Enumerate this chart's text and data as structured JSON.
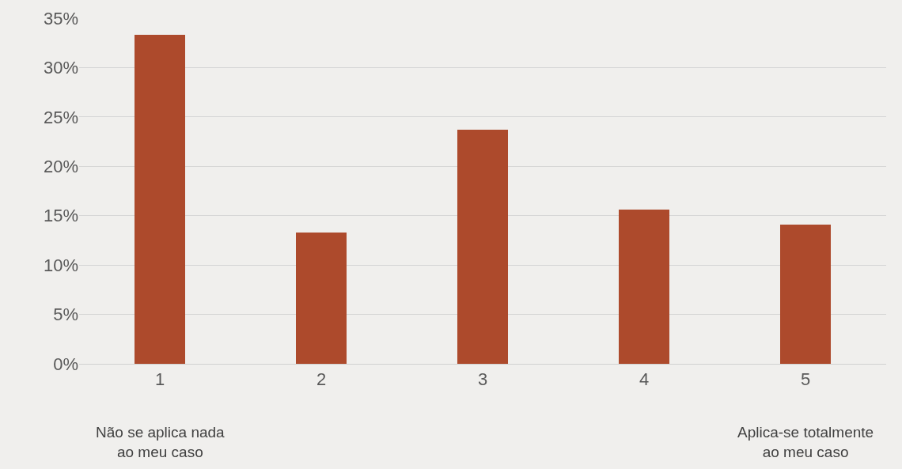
{
  "chart_data": {
    "type": "bar",
    "categories": [
      "1",
      "2",
      "3",
      "4",
      "5"
    ],
    "series": [
      {
        "color": "#ad4a2c",
        "values": [
          33.3,
          13.3,
          23.7,
          15.6,
          14.1
        ]
      }
    ],
    "ylim": [
      0,
      35
    ],
    "yticks": [
      {
        "value": 0,
        "label": "0%"
      },
      {
        "value": 5,
        "label": "5%"
      },
      {
        "value": 10,
        "label": "10%"
      },
      {
        "value": 15,
        "label": "15%"
      },
      {
        "value": 20,
        "label": "20%"
      },
      {
        "value": 25,
        "label": "25%"
      },
      {
        "value": 30,
        "label": "30%"
      },
      {
        "value": 35,
        "label": "35%"
      }
    ],
    "grid": "y",
    "legend": false,
    "annotations": [
      "Não se aplica nada\nao meu caso",
      "Aplica-se totalmente\nao meu caso"
    ]
  }
}
